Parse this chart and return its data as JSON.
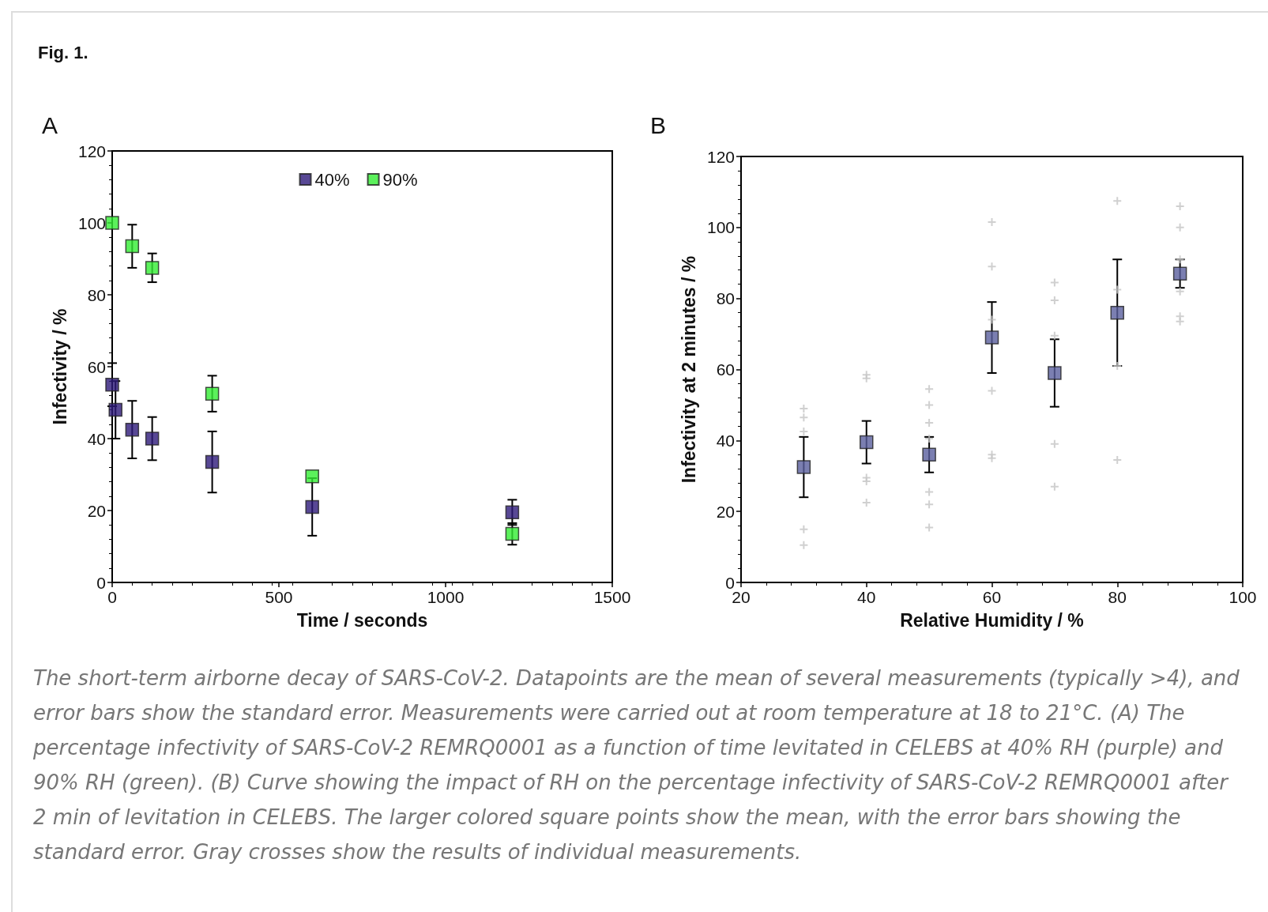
{
  "chart_data": [
    {
      "type": "scatter",
      "title": "A",
      "xlabel": "Time / seconds",
      "ylabel": "Infectivity / %",
      "xlim": [
        0,
        1500
      ],
      "xticks": [
        0,
        500,
        1000,
        1500
      ],
      "ylim": [
        0,
        120
      ],
      "yticks": [
        0,
        20,
        40,
        60,
        80,
        100,
        120
      ],
      "grid": false,
      "legend": "top",
      "marker": "square",
      "annotations": [
        "Fig. 1."
      ],
      "series": [
        {
          "name": "40%",
          "color": "#2e1a7a",
          "x": [
            0,
            10,
            60,
            120,
            300,
            600,
            1200
          ],
          "values": [
            55,
            48,
            42.5,
            40,
            33.5,
            21,
            19.5
          ],
          "errors": [
            6,
            8,
            8,
            6,
            8.5,
            8,
            3.5
          ]
        },
        {
          "name": "90%",
          "color": "#33ee33",
          "x": [
            0,
            60,
            120,
            300,
            600,
            1200
          ],
          "values": [
            100,
            93.5,
            87.5,
            52.5,
            29.5,
            13.5
          ],
          "errors": [
            null,
            6,
            4,
            5,
            null,
            3
          ]
        }
      ]
    },
    {
      "type": "scatter",
      "title": "B",
      "xlabel": "Relative Humidity / %",
      "ylabel": "Infectivity at 2 minutes / %",
      "xlim": [
        20,
        100
      ],
      "xticks": [
        20,
        40,
        60,
        80,
        100
      ],
      "ylim": [
        0,
        120
      ],
      "yticks": [
        0,
        20,
        40,
        60,
        80,
        100,
        120
      ],
      "grid": false,
      "legend": false,
      "marker": "square",
      "annotations": [
        "The short-term airborne decay of SARS-CoV-2. Datapoints are the mean of several measurements (typically >4), and error bars show the standard error. Measurements were carried out at room temperature at 18 to 21°C. (A) The percentage infectivity of SARS-CoV-2 REMRQ0001 as a function of time levitated in CELEBS at 40% RH (purple) and 90% RH (green). (B) Curve showing the impact of RH on the percentage infectivity of SARS-CoV-2 REMRQ0001 after 2 min of levitation in CELEBS. The larger colored square points show the mean, with the error bars showing the standard error. Gray crosses show the results of individual measurements."
      ],
      "series": [
        {
          "color": "#c4c4c4",
          "marker": "cross",
          "x": [
            30,
            30,
            30,
            30,
            30,
            40,
            40,
            40,
            40,
            40,
            50,
            50,
            50,
            50,
            50,
            50,
            50,
            60,
            60,
            60,
            60,
            60,
            60,
            70,
            70,
            70,
            70,
            70,
            80,
            80,
            80,
            80,
            90,
            90,
            90,
            90,
            90,
            90
          ],
          "values": [
            49,
            46.5,
            42.5,
            15,
            10.5,
            58.5,
            57.5,
            29.5,
            28.5,
            22.5,
            54.5,
            50,
            45,
            40.5,
            25.5,
            22,
            15.5,
            101.5,
            89,
            74,
            54,
            36,
            35,
            84.5,
            79.5,
            69.5,
            39,
            27,
            107.5,
            82.5,
            61,
            34.5,
            106,
            100,
            91,
            82,
            75,
            73.5
          ]
        },
        {
          "color": "#5a5f9e",
          "x": [
            30,
            40,
            50,
            60,
            70,
            80,
            90
          ],
          "values": [
            32.5,
            39.5,
            36,
            69,
            59,
            76,
            87
          ],
          "errors": [
            8.5,
            6,
            5,
            10,
            9.5,
            15,
            4
          ]
        }
      ]
    }
  ]
}
